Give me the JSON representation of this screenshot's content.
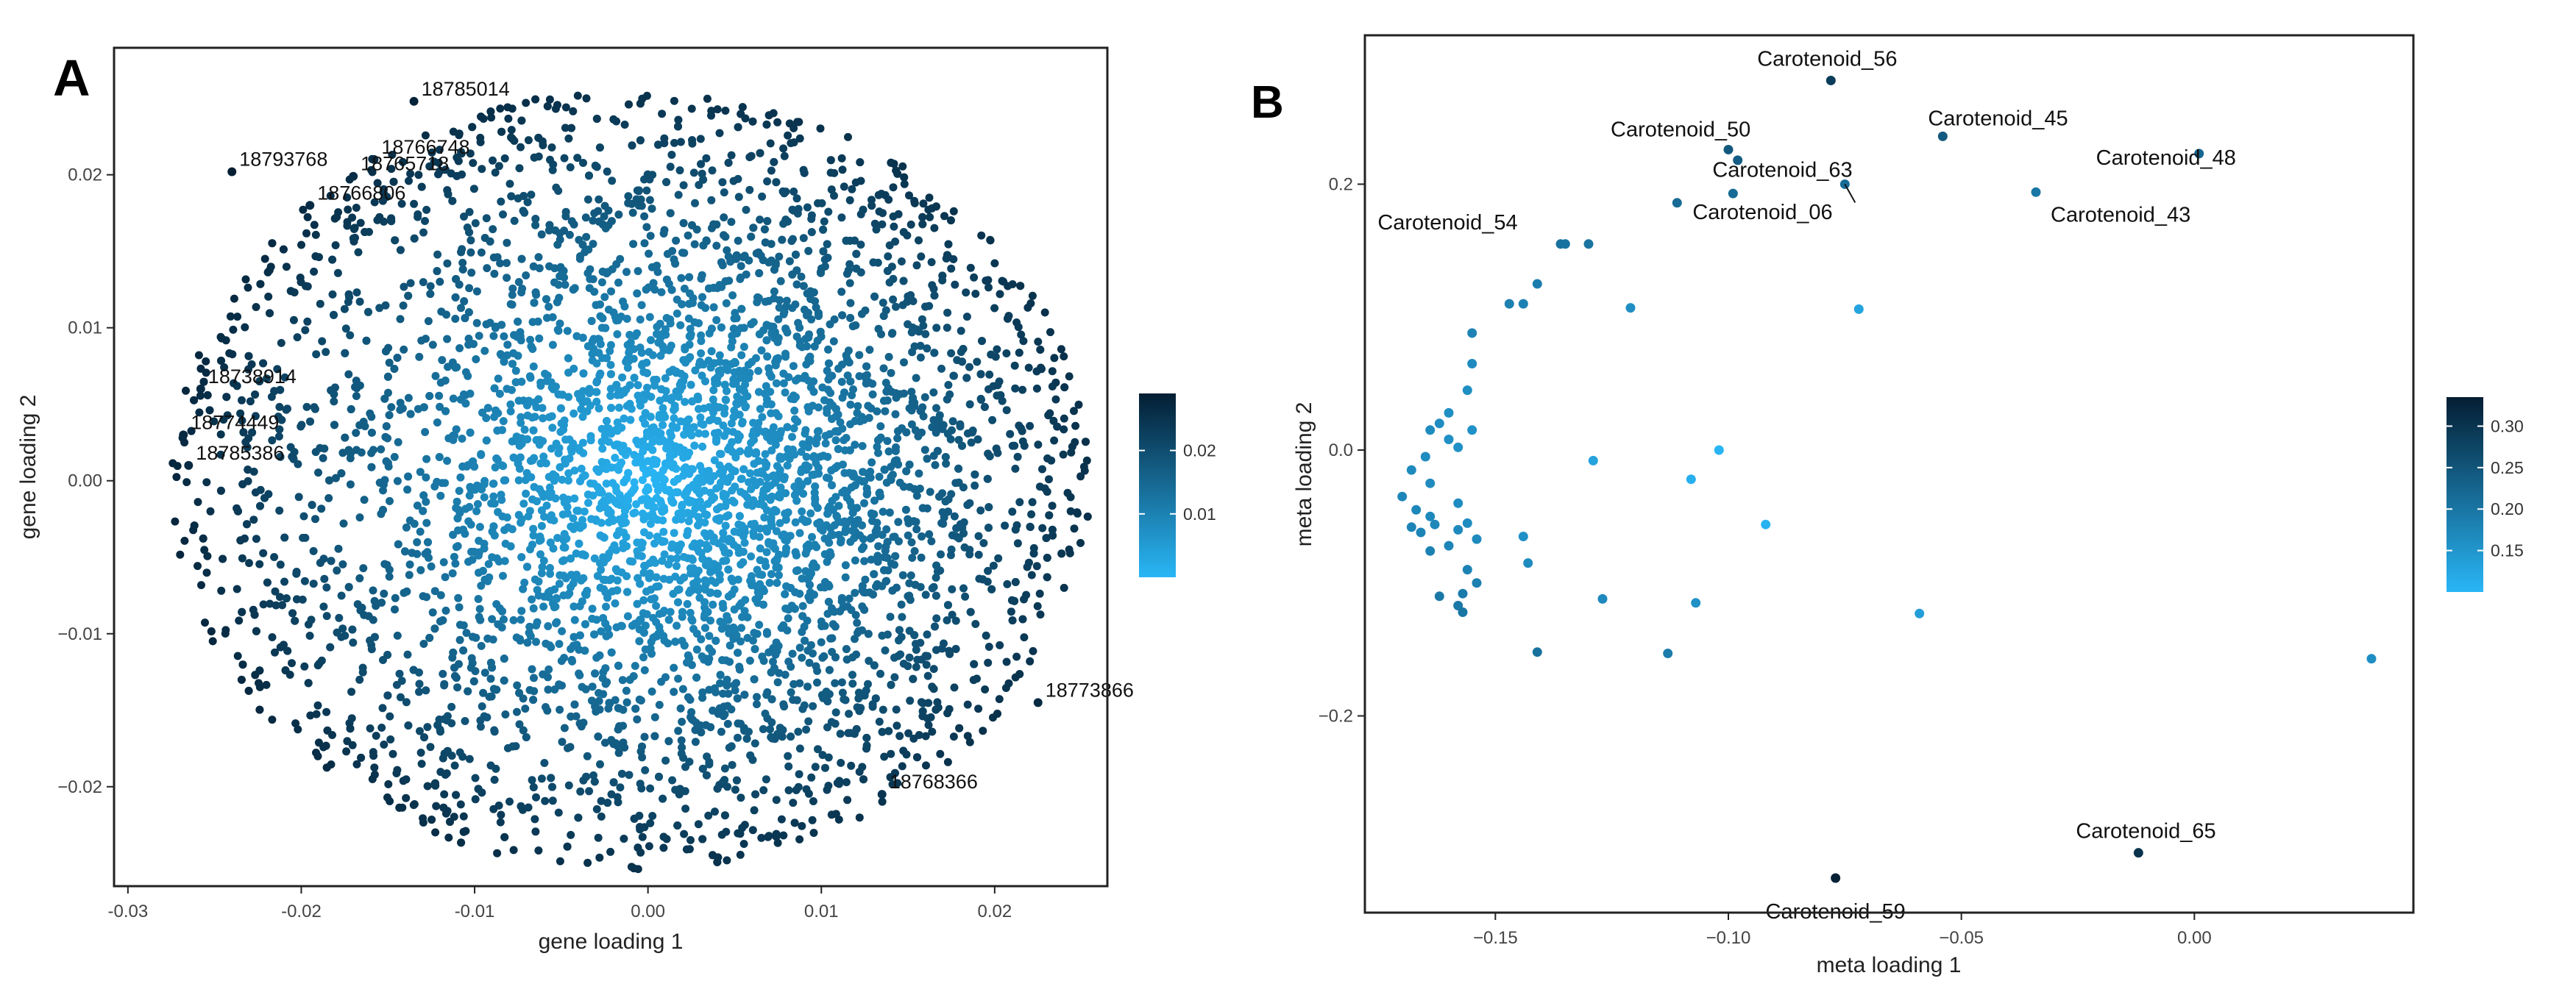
{
  "panels": [
    {
      "letter": "A",
      "chart_data": {
        "type": "scatter",
        "xlabel": "gene loading 1",
        "ylabel": "gene loading 2",
        "xlim": [
          -0.0308,
          0.0265
        ],
        "ylim": [
          -0.0265,
          0.0283
        ],
        "xticks": [
          -0.03,
          -0.02,
          -0.01,
          0.0,
          0.01,
          0.02
        ],
        "xtick_labels": [
          "-0.03",
          "-0.02",
          "-0.01",
          "0.00",
          "0.01",
          "0.02"
        ],
        "yticks": [
          -0.02,
          -0.01,
          0.0,
          0.01,
          0.02
        ],
        "ytick_labels": [
          "−0.02",
          "−0.01",
          "0.00",
          "0.01",
          "0.02"
        ],
        "grid": false,
        "color_scale": {
          "colors": [
            "#29b6f6",
            "#041e33"
          ],
          "range": [
            0.0,
            0.029
          ],
          "ticks": [
            0.01,
            0.02
          ],
          "tick_labels": [
            "0.01",
            "0.02"
          ]
        },
        "point_cloud": {
          "n": 5200,
          "center": [
            0.004,
            -0.001
          ],
          "shape": "disc-with-point-labels",
          "x_extent": [
            -0.0275,
            0.0255
          ],
          "y_extent": [
            -0.0255,
            0.0255
          ],
          "color_metric": "distance-from-origin"
        },
        "labeled_points": [
          {
            "label": "18785014",
            "x": -0.0135,
            "y": 0.0248
          },
          {
            "label": "18766748",
            "x": -0.0158,
            "y": 0.021
          },
          {
            "label": "18793768",
            "x": -0.024,
            "y": 0.0202
          },
          {
            "label": "18765718",
            "x": -0.017,
            "y": 0.0199
          },
          {
            "label": "18766806",
            "x": -0.0195,
            "y": 0.018
          },
          {
            "label": "18738914",
            "x": -0.0258,
            "y": 0.006
          },
          {
            "label": "18774449",
            "x": -0.0268,
            "y": 0.003
          },
          {
            "label": "18785386",
            "x": -0.0265,
            "y": 0.001
          },
          {
            "label": "18773866",
            "x": 0.0225,
            "y": -0.0145
          },
          {
            "label": "18768366",
            "x": 0.0135,
            "y": -0.0205
          }
        ]
      }
    },
    {
      "letter": "B",
      "chart_data": {
        "type": "scatter",
        "xlabel": "meta loading 1",
        "ylabel": "meta loading 2",
        "xlim": [
          -0.178,
          0.047
        ],
        "ylim": [
          -0.348,
          0.312
        ],
        "xticks": [
          -0.15,
          -0.1,
          -0.05,
          0.0
        ],
        "xtick_labels": [
          "−0.15",
          "−0.10",
          "−0.05",
          "0.00"
        ],
        "yticks": [
          -0.2,
          0.0,
          0.2
        ],
        "ytick_labels": [
          "−0.2",
          "0.0",
          "0.2"
        ],
        "grid": false,
        "color_scale": {
          "colors": [
            "#29b6f6",
            "#041e33"
          ],
          "range": [
            0.1,
            0.335
          ],
          "ticks": [
            0.15,
            0.2,
            0.25,
            0.3
          ],
          "tick_labels": [
            "0.15",
            "0.20",
            "0.25",
            "0.30"
          ]
        },
        "labeled_points": [
          {
            "label": "Carotenoid_56",
            "x": -0.078,
            "y": 0.278
          },
          {
            "label": "Carotenoid_45",
            "x": -0.054,
            "y": 0.236
          },
          {
            "label": "Carotenoid_48",
            "x": 0.001,
            "y": 0.223
          },
          {
            "label": "Carotenoid_50",
            "x": -0.1,
            "y": 0.226
          },
          {
            "label": "Carotenoid_63",
            "x": -0.075,
            "y": 0.2
          },
          {
            "label": "Carotenoid_06",
            "x": -0.099,
            "y": 0.193
          },
          {
            "label": "Carotenoid_43",
            "x": -0.034,
            "y": 0.194
          },
          {
            "label": "Carotenoid_54",
            "x": -0.135,
            "y": 0.155
          },
          {
            "label": "Carotenoid_65",
            "x": -0.012,
            "y": -0.303
          },
          {
            "label": "Carotenoid_59",
            "x": -0.077,
            "y": -0.322
          }
        ],
        "points": [
          {
            "x": -0.098,
            "y": 0.218
          },
          {
            "x": -0.111,
            "y": 0.186
          },
          {
            "x": -0.136,
            "y": 0.155
          },
          {
            "x": -0.13,
            "y": 0.155
          },
          {
            "x": -0.147,
            "y": 0.11
          },
          {
            "x": -0.144,
            "y": 0.11
          },
          {
            "x": -0.141,
            "y": 0.125
          },
          {
            "x": -0.121,
            "y": 0.107
          },
          {
            "x": -0.072,
            "y": 0.106
          },
          {
            "x": -0.155,
            "y": 0.088
          },
          {
            "x": -0.155,
            "y": 0.065
          },
          {
            "x": -0.156,
            "y": 0.045
          },
          {
            "x": -0.16,
            "y": 0.028
          },
          {
            "x": -0.162,
            "y": 0.02
          },
          {
            "x": -0.164,
            "y": 0.015
          },
          {
            "x": -0.16,
            "y": 0.008
          },
          {
            "x": -0.155,
            "y": 0.015
          },
          {
            "x": -0.158,
            "y": 0.002
          },
          {
            "x": -0.165,
            "y": -0.005
          },
          {
            "x": -0.168,
            "y": -0.015
          },
          {
            "x": -0.164,
            "y": -0.025
          },
          {
            "x": -0.17,
            "y": -0.035
          },
          {
            "x": -0.167,
            "y": -0.045
          },
          {
            "x": -0.164,
            "y": -0.05
          },
          {
            "x": -0.163,
            "y": -0.056
          },
          {
            "x": -0.168,
            "y": -0.058
          },
          {
            "x": -0.166,
            "y": -0.062
          },
          {
            "x": -0.158,
            "y": -0.04
          },
          {
            "x": -0.158,
            "y": -0.06
          },
          {
            "x": -0.156,
            "y": -0.055
          },
          {
            "x": -0.154,
            "y": -0.067
          },
          {
            "x": -0.16,
            "y": -0.072
          },
          {
            "x": -0.156,
            "y": -0.09
          },
          {
            "x": -0.154,
            "y": -0.1
          },
          {
            "x": -0.157,
            "y": -0.108
          },
          {
            "x": -0.158,
            "y": -0.117
          },
          {
            "x": -0.162,
            "y": -0.11
          },
          {
            "x": -0.157,
            "y": -0.122
          },
          {
            "x": -0.164,
            "y": -0.076
          },
          {
            "x": -0.144,
            "y": -0.065
          },
          {
            "x": -0.143,
            "y": -0.085
          },
          {
            "x": -0.141,
            "y": -0.152
          },
          {
            "x": -0.129,
            "y": -0.008
          },
          {
            "x": -0.127,
            "y": -0.112
          },
          {
            "x": -0.113,
            "y": -0.153
          },
          {
            "x": -0.108,
            "y": -0.022
          },
          {
            "x": -0.107,
            "y": -0.115
          },
          {
            "x": -0.102,
            "y": 0.0
          },
          {
            "x": -0.092,
            "y": -0.056
          },
          {
            "x": -0.059,
            "y": -0.123
          },
          {
            "x": 0.038,
            "y": -0.157
          }
        ]
      }
    }
  ]
}
